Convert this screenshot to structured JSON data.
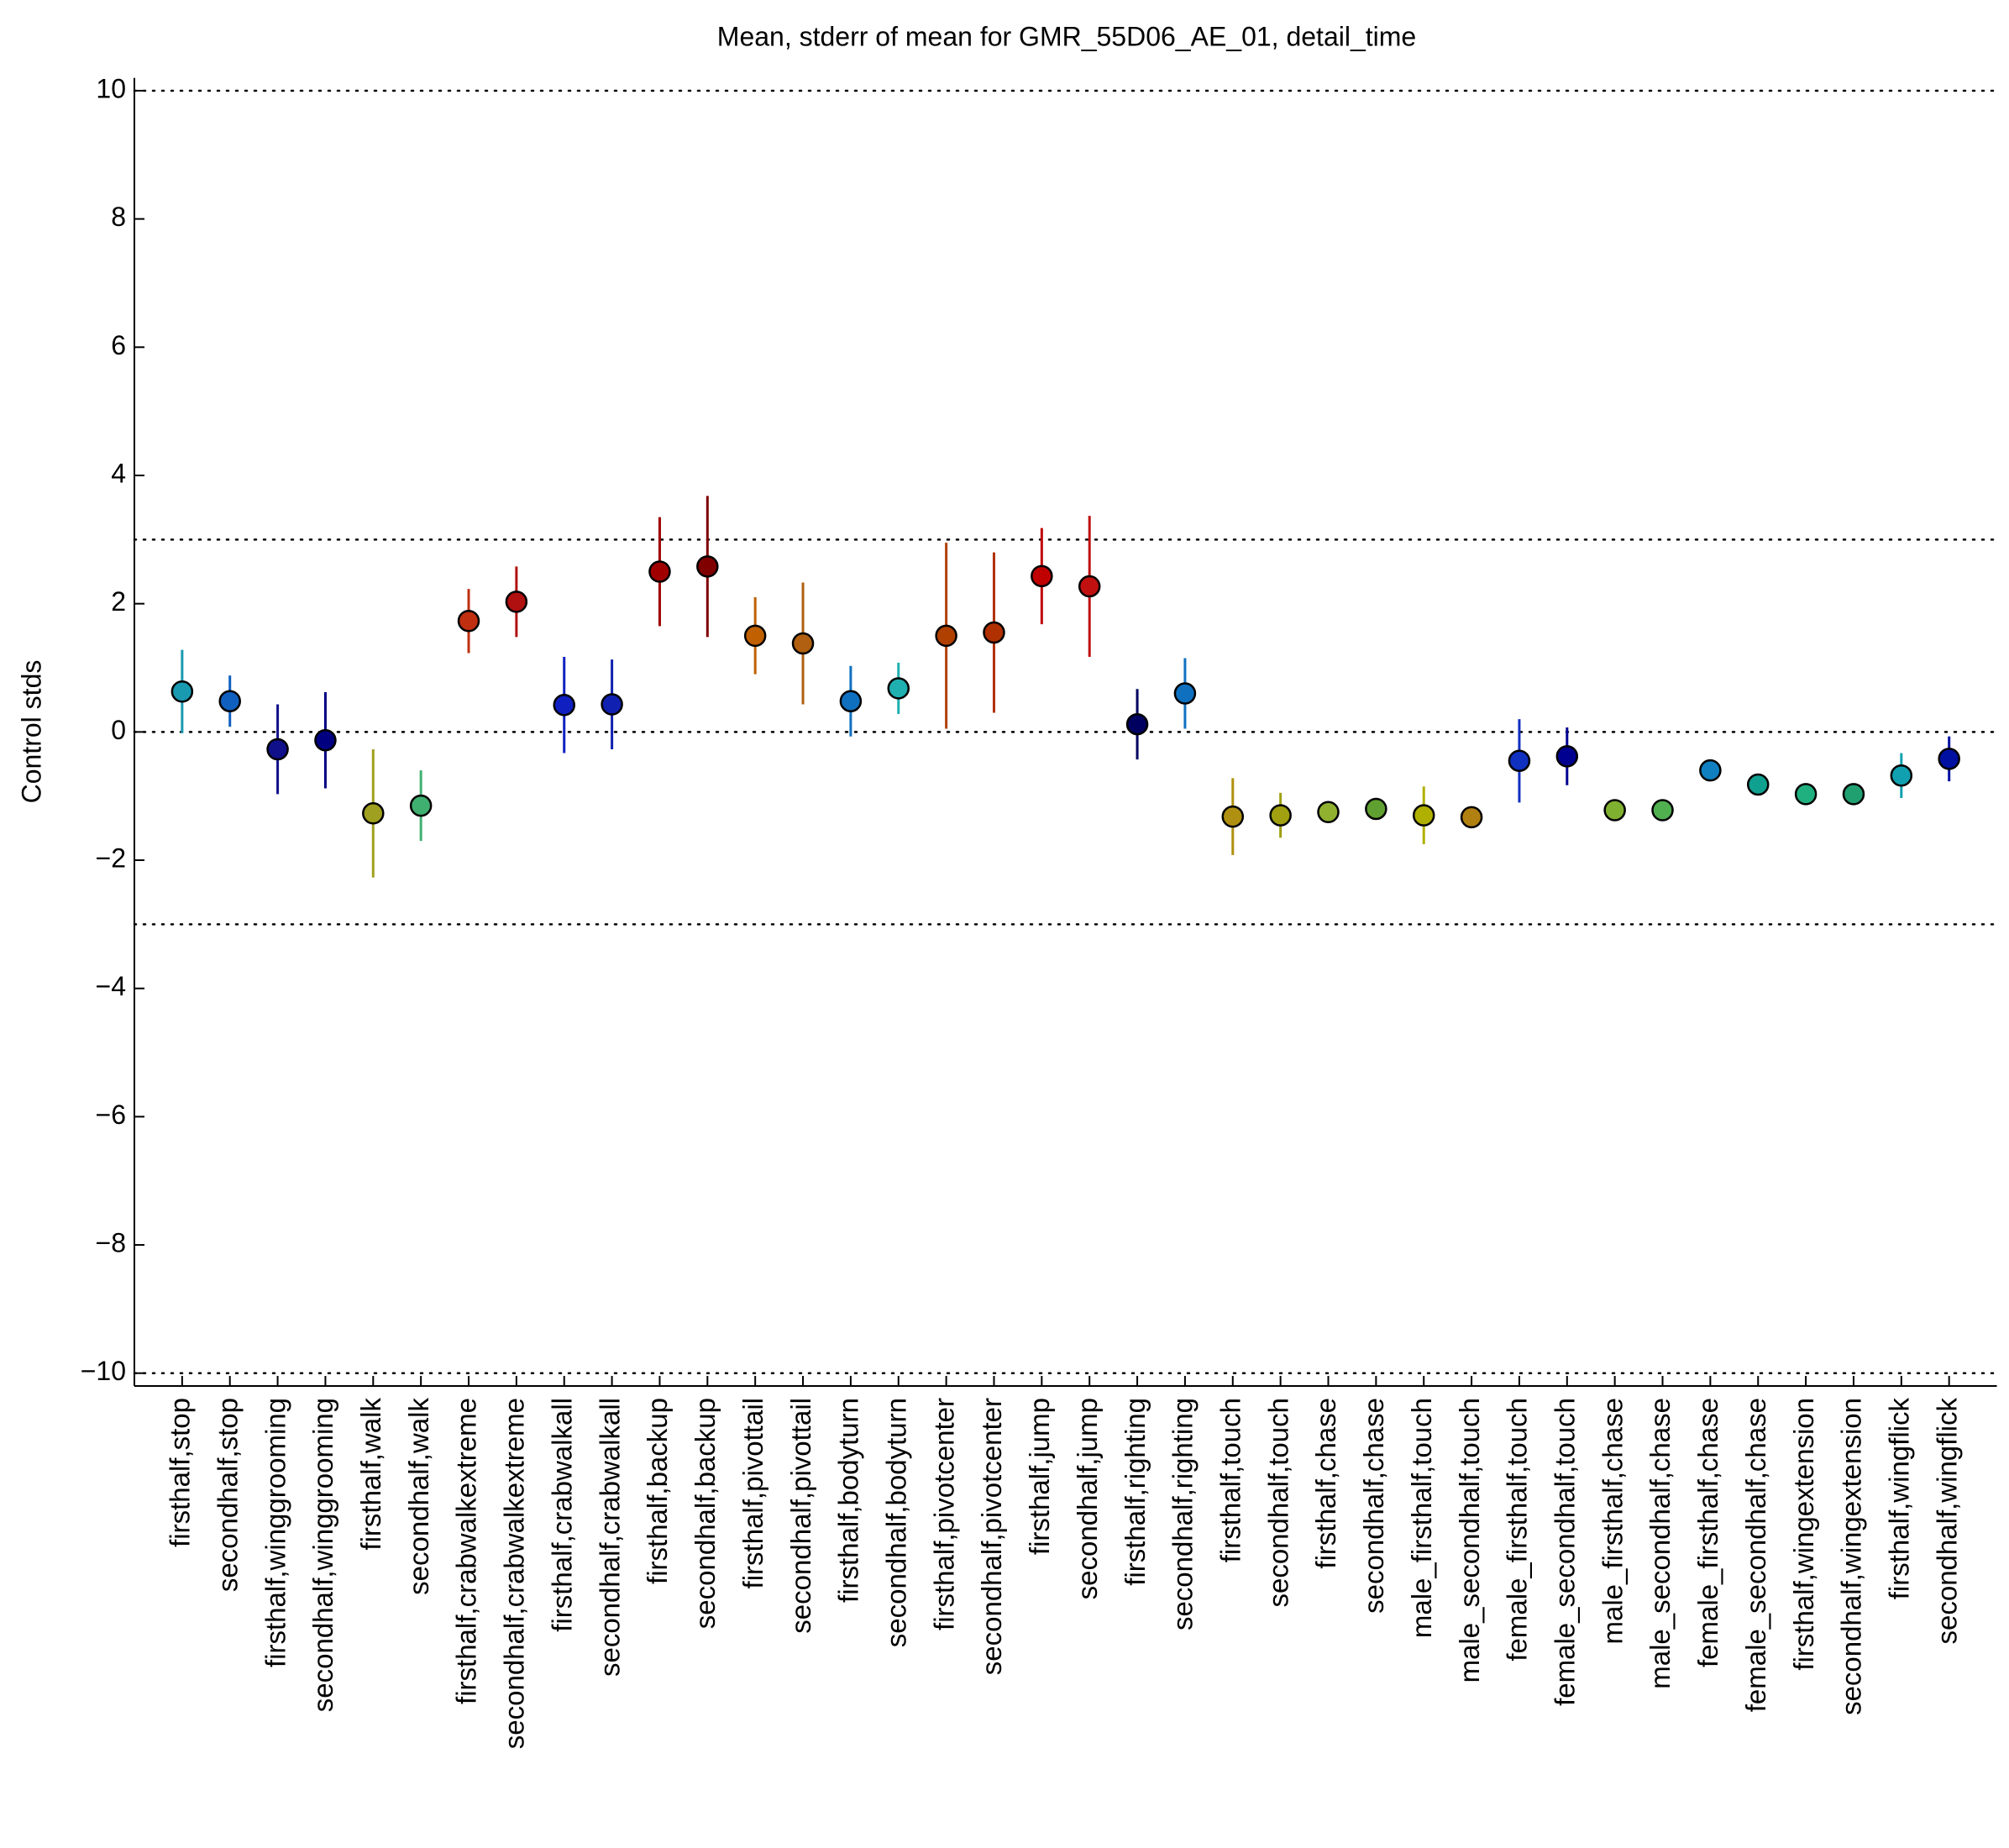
{
  "chart_data": {
    "type": "errorbar",
    "title": "Mean, stderr of mean for GMR_55D06_AE_01, detail_time",
    "ylabel": "Control stds",
    "categories": [
      "firsthalf,stop",
      "secondhalf,stop",
      "firsthalf,winggrooming",
      "secondhalf,winggrooming",
      "firsthalf,walk",
      "secondhalf,walk",
      "firsthalf,crabwalkextreme",
      "secondhalf,crabwalkextreme",
      "firsthalf,crabwalkall",
      "secondhalf,crabwalkall",
      "firsthalf,backup",
      "secondhalf,backup",
      "firsthalf,pivottail",
      "secondhalf,pivottail",
      "firsthalf,bodyturn",
      "secondhalf,bodyturn",
      "firsthalf,pivotcenter",
      "secondhalf,pivotcenter",
      "firsthalf,jump",
      "secondhalf,jump",
      "firsthalf,righting",
      "secondhalf,righting",
      "firsthalf,touch",
      "secondhalf,touch",
      "firsthalf,chase",
      "secondhalf,chase",
      "male_firsthalf,touch",
      "male_secondhalf,touch",
      "female_firsthalf,touch",
      "female_secondhalf,touch",
      "male_firsthalf,chase",
      "male_secondhalf,chase",
      "female_firsthalf,chase",
      "female_secondhalf,chase",
      "firsthalf,wingextension",
      "secondhalf,wingextension",
      "firsthalf,wingflick",
      "secondhalf,wingflick"
    ],
    "values": [
      0.63,
      0.48,
      -0.27,
      -0.13,
      -1.27,
      -1.15,
      1.73,
      2.03,
      0.42,
      0.43,
      2.5,
      2.58,
      1.5,
      1.38,
      0.48,
      0.68,
      1.5,
      1.55,
      2.43,
      2.27,
      0.12,
      0.6,
      -1.32,
      -1.3,
      -1.25,
      -1.2,
      -1.3,
      -1.33,
      -0.45,
      -0.38,
      -1.22,
      -1.22,
      -0.6,
      -0.82,
      -0.97,
      -0.97,
      -0.68,
      -0.42
    ],
    "errors": [
      0.65,
      0.4,
      0.7,
      0.75,
      1.0,
      0.55,
      0.5,
      0.55,
      0.75,
      0.7,
      0.85,
      1.1,
      0.6,
      0.95,
      0.55,
      0.4,
      1.45,
      1.25,
      0.75,
      1.1,
      0.55,
      0.55,
      0.6,
      0.35,
      0.15,
      0.15,
      0.45,
      0.15,
      0.65,
      0.45,
      0.1,
      0.1,
      0.1,
      0.1,
      0.1,
      0.1,
      0.35,
      0.35
    ],
    "colors": [
      "#1a9ab0",
      "#1060c0",
      "#10108a",
      "#000080",
      "#a0a020",
      "#40b070",
      "#c03010",
      "#b01010",
      "#1020c0",
      "#1020b0",
      "#a00000",
      "#800000",
      "#c06000",
      "#b06010",
      "#1070c0",
      "#20b0b0",
      "#b04000",
      "#b03000",
      "#c00000",
      "#c01010",
      "#000060",
      "#1070c0",
      "#b09010",
      "#a0a010",
      "#90b030",
      "#60a030",
      "#b0b000",
      "#b08010",
      "#1030c0",
      "#000090",
      "#80b030",
      "#50b050",
      "#1080c0",
      "#10a090",
      "#20b080",
      "#20a070",
      "#10a0b0",
      "#0010a0"
    ],
    "ylim": [
      -10.2,
      10.2
    ],
    "yticks": [
      {
        "value": -10,
        "label": "−10"
      },
      {
        "value": -8,
        "label": "−8"
      },
      {
        "value": -6,
        "label": "−6"
      },
      {
        "value": -4,
        "label": "−4"
      },
      {
        "value": -2,
        "label": "−2"
      },
      0,
      2,
      4,
      6,
      8,
      10
    ],
    "reference_lines": [
      -10,
      -3,
      0,
      3,
      10
    ]
  }
}
